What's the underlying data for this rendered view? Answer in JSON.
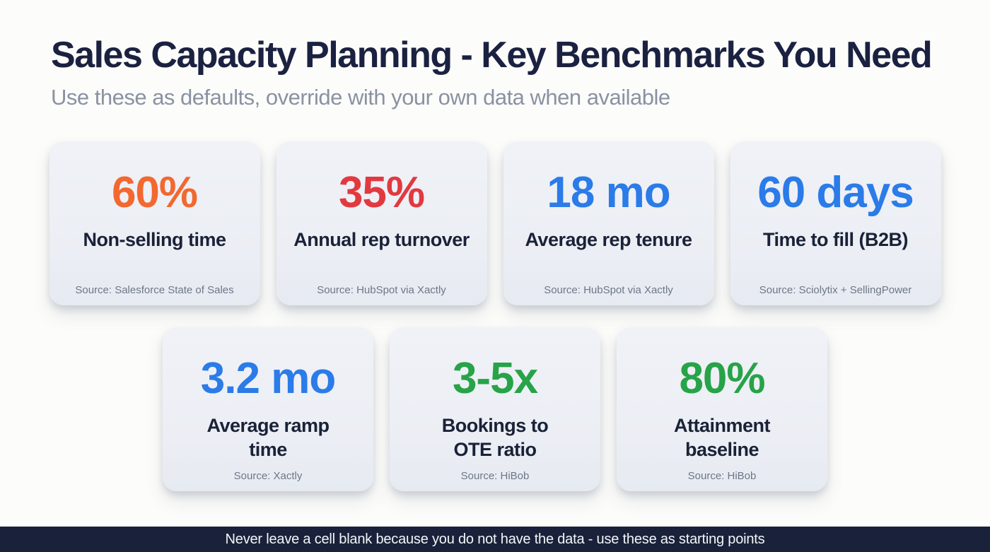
{
  "slide": {
    "title": "Sales Capacity Planning - Key Benchmarks You Need",
    "subtitle": "Use these as defaults, override with your own data when available",
    "footer_note": "Never leave a cell blank because you do not have the data - use these as starting points"
  },
  "colors": {
    "title_navy": "#1B2140",
    "subtitle_gray": "#8A92A2",
    "label_navy": "#1A2238",
    "source_gray": "#6E7787",
    "card_background": "#EDF0F6",
    "footer_background": "#19223A",
    "accent_orange": "#F2682F",
    "accent_red": "#E23940",
    "accent_blue": "#2B7BE8",
    "accent_green": "#27A348"
  },
  "cards": [
    {
      "value": "60%",
      "value_color": "#F2682F",
      "label": "Non-selling time",
      "source": "Source: Salesforce State of Sales"
    },
    {
      "value": "35%",
      "value_color": "#E23940",
      "label": "Annual rep turnover",
      "source": "Source: HubSpot via Xactly"
    },
    {
      "value": "18 mo",
      "value_color": "#2B7BE8",
      "label": "Average rep tenure",
      "source": "Source: HubSpot via Xactly"
    },
    {
      "value": "60 days",
      "value_color": "#2B7BE8",
      "label": "Time to fill (B2B)",
      "source": "Source: Sciolytix + SellingPower"
    },
    {
      "value": "3.2 mo",
      "value_color": "#2B7BE8",
      "label": "Average ramp\ntime",
      "source": "Source: Xactly"
    },
    {
      "value": "3-5x",
      "value_color": "#27A348",
      "label": "Bookings to\nOTE ratio",
      "source": "Source: HiBob"
    },
    {
      "value": "80%",
      "value_color": "#27A348",
      "label": "Attainment\nbaseline",
      "source": "Source: HiBob"
    }
  ]
}
